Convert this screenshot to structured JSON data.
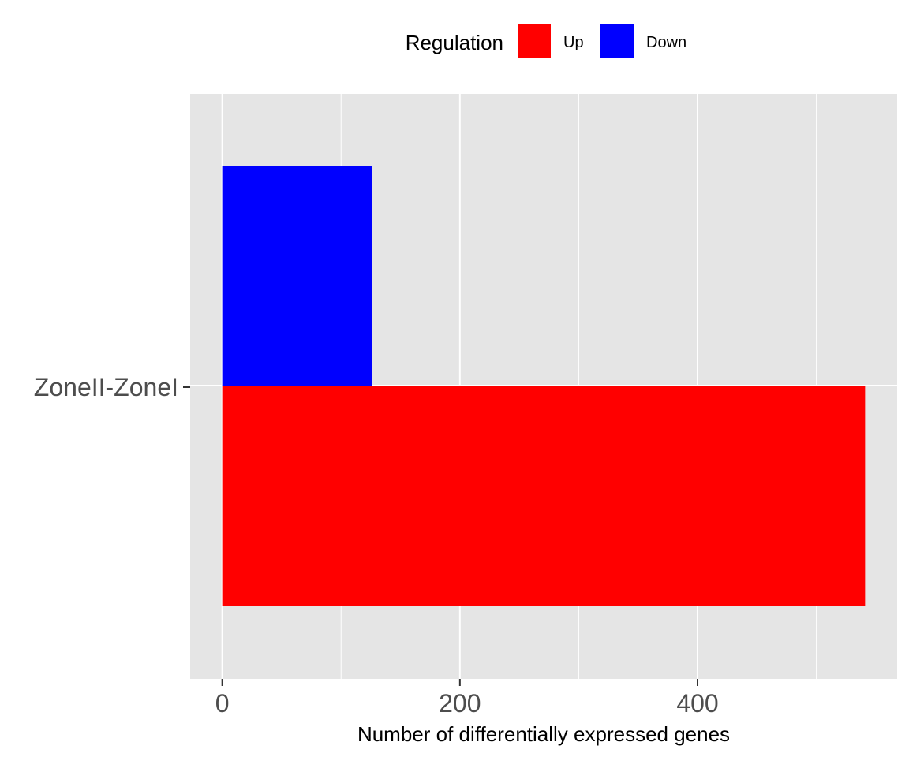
{
  "chart_data": {
    "type": "bar",
    "orientation": "horizontal",
    "categories": [
      "ZoneII-ZoneI"
    ],
    "series": [
      {
        "name": "Up",
        "values": [
          541
        ],
        "color": "#ff0000"
      },
      {
        "name": "Down",
        "values": [
          126
        ],
        "color": "#0000ff"
      }
    ],
    "xlabel": "Number of differentially expressed genes",
    "ylabel": "",
    "xlim": [
      -27,
      568
    ],
    "x_ticks": [
      0,
      200,
      400
    ],
    "x_tick_labels": [
      "0",
      "200",
      "400"
    ],
    "grid": true,
    "legend": {
      "title": "Regulation",
      "position": "top"
    }
  },
  "colors": {
    "panel_background": "#e5e5e5",
    "grid": "#ffffff",
    "axis_text": "#4d4d4d"
  }
}
